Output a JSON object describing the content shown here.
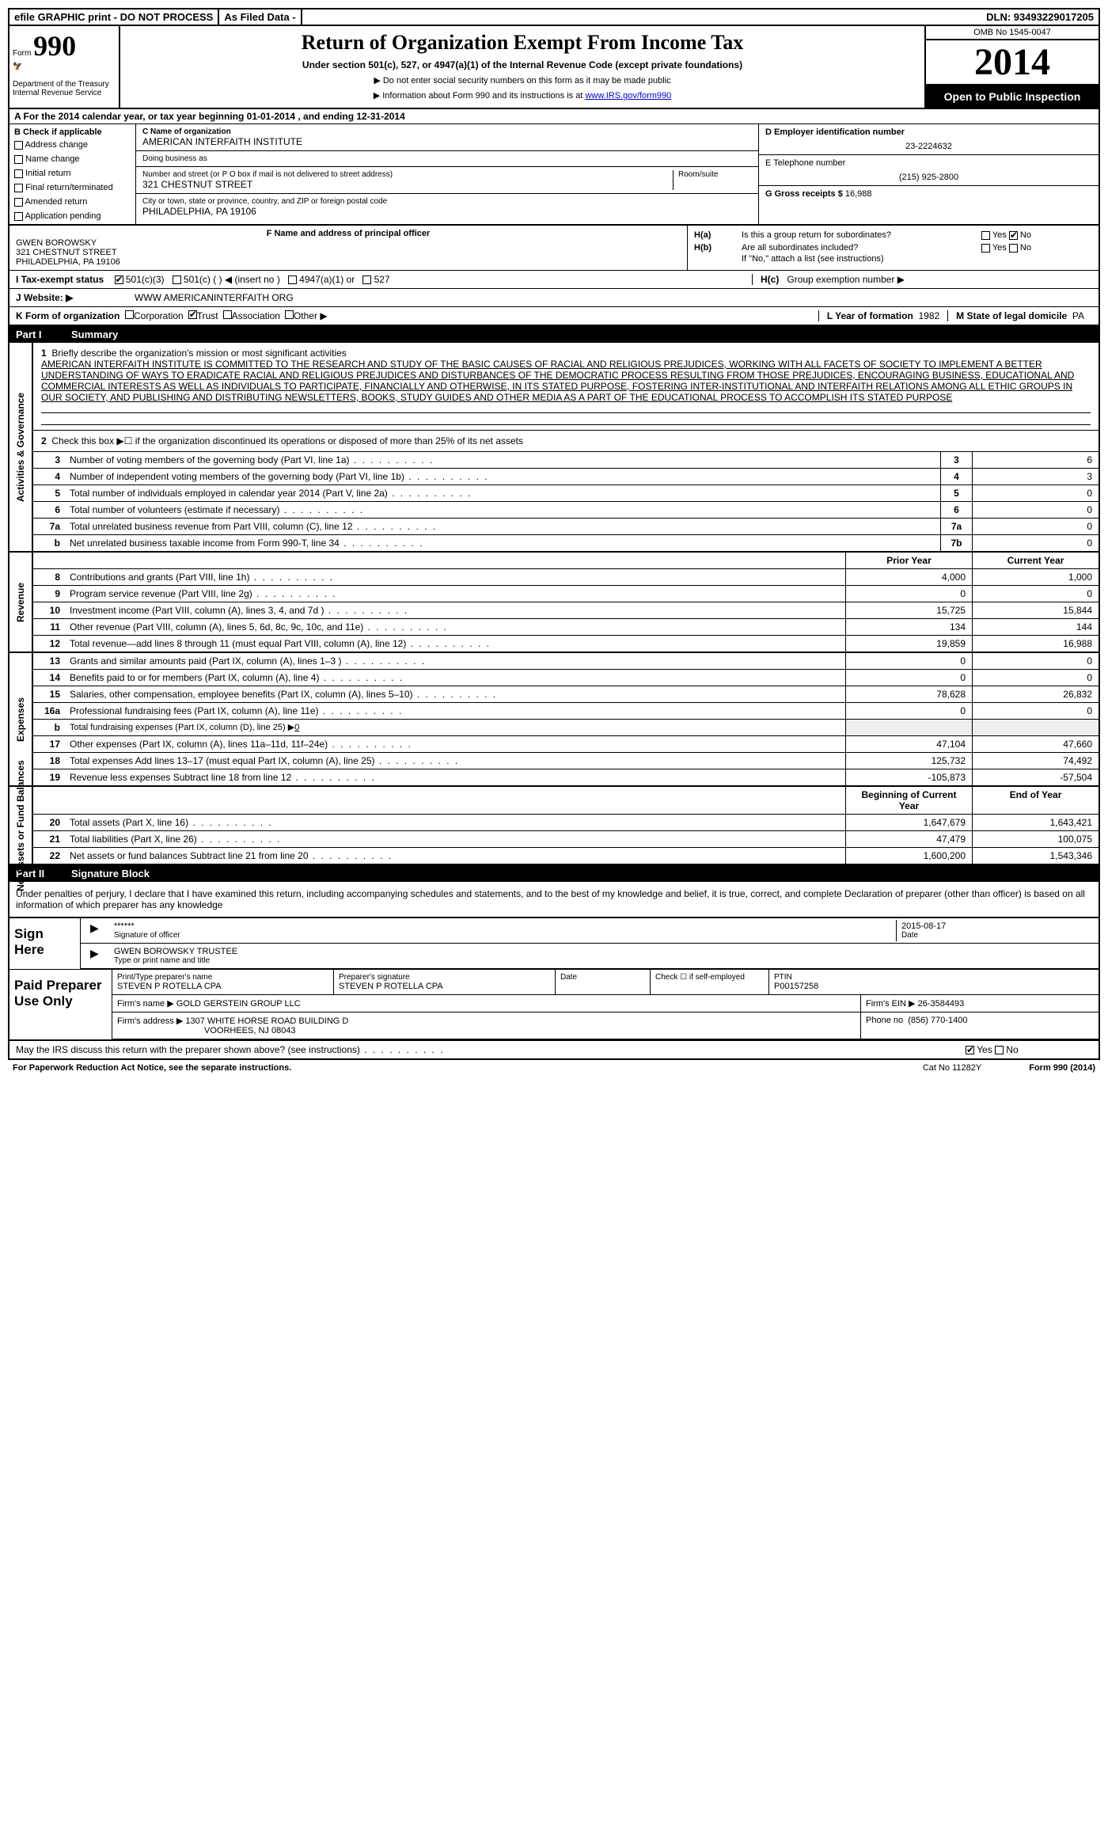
{
  "topbar": {
    "efile": "efile GRAPHIC print - DO NOT PROCESS",
    "asfiled": "As Filed Data -",
    "dln": "DLN: 93493229017205"
  },
  "header": {
    "form_label": "Form",
    "form_num": "990",
    "dept1": "Department of the Treasury",
    "dept2": "Internal Revenue Service",
    "title": "Return of Organization Exempt From Income Tax",
    "subtitle": "Under section 501(c), 527, or 4947(a)(1) of the Internal Revenue Code (except private foundations)",
    "note1": "▶ Do not enter social security numbers on this form as it may be made public",
    "note2": "▶ Information about Form 990 and its instructions is at ",
    "note2_link": "www.IRS.gov/form990",
    "omb": "OMB No 1545-0047",
    "year": "2014",
    "open": "Open to Public Inspection"
  },
  "sectionA": "A For the 2014 calendar year, or tax year beginning 01-01-2014   , and ending 12-31-2014",
  "colB": {
    "title": "B Check if applicable",
    "items": [
      "Address change",
      "Name change",
      "Initial return",
      "Final return/terminated",
      "Amended return",
      "Application pending"
    ]
  },
  "colC": {
    "name_label": "C Name of organization",
    "name": "AMERICAN INTERFAITH INSTITUTE",
    "dba_label": "Doing business as",
    "dba": "",
    "addr_label": "Number and street (or P O  box if mail is not delivered to street address)",
    "room_label": "Room/suite",
    "addr": "321 CHESTNUT STREET",
    "city_label": "City or town, state or province, country, and ZIP or foreign postal code",
    "city": "PHILADELPHIA, PA  19106"
  },
  "colD": {
    "ein_label": "D Employer identification number",
    "ein": "23-2224632",
    "tel_label": "E Telephone number",
    "tel": "(215) 925-2800",
    "gross_label": "G Gross receipts $",
    "gross": "16,988"
  },
  "officerF": {
    "label": "F   Name and address of principal officer",
    "name": "GWEN BOROWSKY",
    "addr1": "321 CHESTNUT STREET",
    "addr2": "PHILADELPHIA, PA  19106"
  },
  "sectionH": {
    "ha_label": "H(a)",
    "ha_text": "Is this a group return for subordinates?",
    "ha_no_checked": true,
    "hb_label": "H(b)",
    "hb_text": "Are all subordinates included?",
    "hb_note": "If \"No,\" attach a list  (see instructions)",
    "hc_label": "H(c)",
    "hc_text": "Group exemption number ▶"
  },
  "statusI": {
    "label": "I   Tax-exempt status",
    "opt1": "501(c)(3)",
    "opt1_checked": true,
    "opt2": "501(c) (   ) ◀ (insert no )",
    "opt3": "4947(a)(1) or",
    "opt4": "527"
  },
  "websiteJ": {
    "label": "J   Website: ▶",
    "val": "WWW AMERICANINTERFAITH ORG"
  },
  "lineK": {
    "label": "K Form of organization",
    "corp": "Corporation",
    "trust": "Trust",
    "trust_checked": true,
    "assoc": "Association",
    "other": "Other ▶",
    "year_label": "L Year of formation",
    "year": "1982",
    "state_label": "M State of legal domicile",
    "state": "PA"
  },
  "part1": {
    "num": "Part I",
    "title": "Summary"
  },
  "gov": {
    "side": "Activities & Governance",
    "q1_label": "1",
    "q1_text": "Briefly describe the organization's mission or most significant activities",
    "mission": "AMERICAN INTERFAITH INSTITUTE IS COMMITTED TO THE RESEARCH AND STUDY OF THE BASIC CAUSES OF RACIAL AND RELIGIOUS PREJUDICES, WORKING WITH ALL FACETS OF SOCIETY TO IMPLEMENT A BETTER UNDERSTANDING OF WAYS TO ERADICATE RACIAL AND RELIGIOUS PREJUDICES AND DISTURBANCES OF THE DEMOCRATIC PROCESS RESULTING FROM THOSE PREJUDICES, ENCOURAGING BUSINESS, EDUCATIONAL AND COMMERCIAL INTERESTS AS WELL AS INDIVIDUALS TO PARTICIPATE, FINANCIALLY AND OTHERWISE, IN ITS STATED PURPOSE, FOSTERING INTER-INSTITUTIONAL AND INTERFAITH RELATIONS AMONG ALL ETHIC GROUPS IN OUR SOCIETY, AND PUBLISHING AND DISTRIBUTING NEWSLETTERS, BOOKS, STUDY GUIDES AND OTHER MEDIA AS A PART OF THE EDUCATIONAL PROCESS TO ACCOMPLISH ITS STATED PURPOSE",
    "q2_num": "2",
    "q2_text": "Check this box ▶☐ if the organization discontinued its operations or disposed of more than 25% of its net assets",
    "rows": [
      {
        "n": "3",
        "t": "Number of voting members of the governing body (Part VI, line 1a)",
        "box": "3",
        "v": "6"
      },
      {
        "n": "4",
        "t": "Number of independent voting members of the governing body (Part VI, line 1b)",
        "box": "4",
        "v": "3"
      },
      {
        "n": "5",
        "t": "Total number of individuals employed in calendar year 2014 (Part V, line 2a)",
        "box": "5",
        "v": "0"
      },
      {
        "n": "6",
        "t": "Total number of volunteers (estimate if necessary)",
        "box": "6",
        "v": "0"
      },
      {
        "n": "7a",
        "t": "Total unrelated business revenue from Part VIII, column (C), line 12",
        "box": "7a",
        "v": "0"
      },
      {
        "n": "b",
        "t": "Net unrelated business taxable income from Form 990-T, line 34",
        "box": "7b",
        "v": "0"
      }
    ]
  },
  "col_headers": {
    "prior": "Prior Year",
    "current": "Current Year",
    "boy": "Beginning of Current Year",
    "eoy": "End of Year"
  },
  "revenue": {
    "side": "Revenue",
    "rows": [
      {
        "n": "8",
        "t": "Contributions and grants (Part VIII, line 1h)",
        "p": "4,000",
        "c": "1,000"
      },
      {
        "n": "9",
        "t": "Program service revenue (Part VIII, line 2g)",
        "p": "0",
        "c": "0"
      },
      {
        "n": "10",
        "t": "Investment income (Part VIII, column (A), lines 3, 4, and 7d )",
        "p": "15,725",
        "c": "15,844"
      },
      {
        "n": "11",
        "t": "Other revenue (Part VIII, column (A), lines 5, 6d, 8c, 9c, 10c, and 11e)",
        "p": "134",
        "c": "144"
      },
      {
        "n": "12",
        "t": "Total revenue—add lines 8 through 11 (must equal Part VIII, column (A), line 12)",
        "p": "19,859",
        "c": "16,988"
      }
    ]
  },
  "expenses": {
    "side": "Expenses",
    "rows": [
      {
        "n": "13",
        "t": "Grants and similar amounts paid (Part IX, column (A), lines 1–3 )",
        "p": "0",
        "c": "0"
      },
      {
        "n": "14",
        "t": "Benefits paid to or for members (Part IX, column (A), line 4)",
        "p": "0",
        "c": "0"
      },
      {
        "n": "15",
        "t": "Salaries, other compensation, employee benefits (Part IX, column (A), lines 5–10)",
        "p": "78,628",
        "c": "26,832"
      },
      {
        "n": "16a",
        "t": "Professional fundraising fees (Part IX, column (A), line 11e)",
        "p": "0",
        "c": "0"
      },
      {
        "n": "b",
        "t": "Total fundraising expenses (Part IX, column (D), line 25) ▶",
        "p": "",
        "c": "",
        "fundraising": "0"
      },
      {
        "n": "17",
        "t": "Other expenses (Part IX, column (A), lines 11a–11d, 11f–24e)",
        "p": "47,104",
        "c": "47,660"
      },
      {
        "n": "18",
        "t": "Total expenses  Add lines 13–17 (must equal Part IX, column (A), line 25)",
        "p": "125,732",
        "c": "74,492"
      },
      {
        "n": "19",
        "t": "Revenue less expenses  Subtract line 18 from line 12",
        "p": "-105,873",
        "c": "-57,504"
      }
    ]
  },
  "netassets": {
    "side": "Net Assets or Fund Balances",
    "rows": [
      {
        "n": "20",
        "t": "Total assets (Part X, line 16)",
        "p": "1,647,679",
        "c": "1,643,421"
      },
      {
        "n": "21",
        "t": "Total liabilities (Part X, line 26)",
        "p": "47,479",
        "c": "100,075"
      },
      {
        "n": "22",
        "t": "Net assets or fund balances  Subtract line 21 from line 20",
        "p": "1,600,200",
        "c": "1,543,346"
      }
    ]
  },
  "part2": {
    "num": "Part II",
    "title": "Signature Block",
    "declaration": "Under penalties of perjury, I declare that I have examined this return, including accompanying schedules and statements, and to the best of my knowledge and belief, it is true, correct, and complete  Declaration of preparer (other than officer) is based on all information of which preparer has any knowledge"
  },
  "sign": {
    "label": "Sign Here",
    "stars": "******",
    "sig_label": "Signature of officer",
    "date": "2015-08-17",
    "date_label": "Date",
    "name": "GWEN BOROWSKY TRUSTEE",
    "name_label": "Type or print name and title"
  },
  "preparer": {
    "label": "Paid Preparer Use Only",
    "name_label": "Print/Type preparer's name",
    "name": "STEVEN P ROTELLA CPA",
    "sig_label": "Preparer's signature",
    "sig": "STEVEN P ROTELLA CPA",
    "date_label": "Date",
    "check_label": "Check ☐ if self-employed",
    "ptin_label": "PTIN",
    "ptin": "P00157258",
    "firm_label": "Firm's name   ▶",
    "firm": "GOLD GERSTEIN GROUP LLC",
    "ein_label": "Firm's EIN ▶",
    "ein": "26-3584493",
    "addr_label": "Firm's address ▶",
    "addr1": "1307 WHITE HORSE ROAD BUILDING D",
    "addr2": "VOORHEES, NJ  08043",
    "phone_label": "Phone no",
    "phone": "(856) 770-1400",
    "discuss": "May the IRS discuss this return with the preparer shown above? (see instructions)",
    "yes_checked": true
  },
  "footer": {
    "pra": "For Paperwork Reduction Act Notice, see the separate instructions.",
    "cat": "Cat No  11282Y",
    "form": "Form 990 (2014)"
  }
}
